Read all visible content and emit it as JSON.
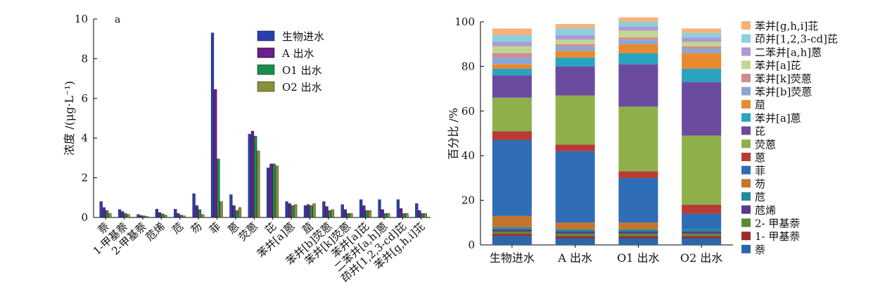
{
  "chart_data": [
    {
      "type": "bar",
      "panel_label": "a",
      "ylabel": "浓度 /(μg·L⁻¹)",
      "ylim": [
        0,
        10
      ],
      "yticks": [
        0,
        2,
        4,
        6,
        8,
        10
      ],
      "categories": [
        "萘",
        "1-甲基萘",
        "2-甲基萘",
        "苊烯",
        "苊",
        "芴",
        "菲",
        "蒽",
        "荧蒽",
        "芘",
        "苯并[a]蒽",
        "䓛",
        "苯并[b]荧蒽",
        "苯并[k]荧蒽",
        "苯并[a]芘",
        "二苯并[a,h]蒽",
        "茚并[1,2,3-cd]芘",
        "苯并[g,h,i]苝"
      ],
      "series": [
        {
          "name": "生物进水",
          "color": "#2a3fae",
          "values": [
            0.8,
            0.4,
            0.15,
            0.42,
            0.42,
            1.2,
            9.3,
            1.15,
            4.2,
            2.5,
            0.8,
            0.6,
            0.8,
            0.65,
            0.9,
            0.9,
            0.9,
            0.7
          ]
        },
        {
          "name": "A 出水",
          "color": "#6a1f8c",
          "values": [
            0.5,
            0.3,
            0.1,
            0.25,
            0.2,
            0.6,
            6.45,
            0.6,
            4.35,
            2.7,
            0.7,
            0.65,
            0.55,
            0.4,
            0.6,
            0.4,
            0.45,
            0.35
          ]
        },
        {
          "name": "O1 出水",
          "color": "#1c8c4c",
          "values": [
            0.35,
            0.2,
            0.08,
            0.18,
            0.12,
            0.4,
            2.95,
            0.35,
            4.1,
            2.7,
            0.6,
            0.6,
            0.35,
            0.2,
            0.35,
            0.2,
            0.2,
            0.2
          ]
        },
        {
          "name": "O2 出水",
          "color": "#8a8f3a",
          "values": [
            0.2,
            0.15,
            0.05,
            0.12,
            0.08,
            0.15,
            0.8,
            0.5,
            3.35,
            2.6,
            0.65,
            0.7,
            0.4,
            0.2,
            0.35,
            0.2,
            0.2,
            0.2
          ]
        }
      ],
      "legend_position": "top-right"
    },
    {
      "type": "stacked_bar",
      "ylabel": "百分比 /%",
      "ylim": [
        0,
        100
      ],
      "yticks": [
        0,
        20,
        40,
        60,
        80,
        100
      ],
      "categories": [
        "生物进水",
        "A 出水",
        "O1 出水",
        "O2 出水"
      ],
      "series": [
        {
          "name": "萘",
          "color": "#2d64ae",
          "values": [
            4,
            3,
            3,
            3
          ]
        },
        {
          "name": "1- 甲基萘",
          "color": "#9b2a2a",
          "values": [
            1,
            1,
            1,
            1
          ]
        },
        {
          "name": "2- 甲基萘",
          "color": "#5a8a32",
          "values": [
            1,
            1,
            1,
            1
          ]
        },
        {
          "name": "苊烯",
          "color": "#5b3b8c",
          "values": [
            1,
            1,
            1,
            1
          ]
        },
        {
          "name": "苊",
          "color": "#1f8aa0",
          "values": [
            1,
            1,
            1,
            1
          ]
        },
        {
          "name": "芴",
          "color": "#c4742d",
          "values": [
            5,
            3,
            3,
            0
          ]
        },
        {
          "name": "菲",
          "color": "#2f6db6",
          "values": [
            34,
            32,
            20,
            7
          ]
        },
        {
          "name": "蒽",
          "color": "#b83a36",
          "values": [
            4,
            3,
            3,
            4
          ]
        },
        {
          "name": "荧蒽",
          "color": "#8db04a",
          "values": [
            15,
            22,
            29,
            31
          ]
        },
        {
          "name": "芘",
          "color": "#6b4ba0",
          "values": [
            10,
            13,
            19,
            24
          ]
        },
        {
          "name": "苯并[a]蒽",
          "color": "#2aa3be",
          "values": [
            3,
            4,
            5,
            6
          ]
        },
        {
          "name": "䓛",
          "color": "#e88a2e",
          "values": [
            2,
            3,
            4,
            7
          ]
        },
        {
          "name": "苯并[b]荧蒽",
          "color": "#8aa6d6",
          "values": [
            3,
            2,
            2,
            2
          ]
        },
        {
          "name": "苯并[k]荧蒽",
          "color": "#d08c8c",
          "values": [
            2,
            1,
            1,
            1
          ]
        },
        {
          "name": "苯并[a]芘",
          "color": "#c2d693",
          "values": [
            3,
            2,
            3,
            2
          ]
        },
        {
          "name": "二苯并[a,h]蒽",
          "color": "#ad9bd0",
          "values": [
            2,
            2,
            2,
            2
          ]
        },
        {
          "name": "茚并[1,2,3-cd]芘",
          "color": "#8ccfe0",
          "values": [
            3,
            3,
            2,
            2
          ]
        },
        {
          "name": "苯并[g,h,i]苝",
          "color": "#f6b27a",
          "values": [
            3,
            2,
            2,
            2
          ]
        }
      ],
      "legend_position": "right"
    }
  ]
}
